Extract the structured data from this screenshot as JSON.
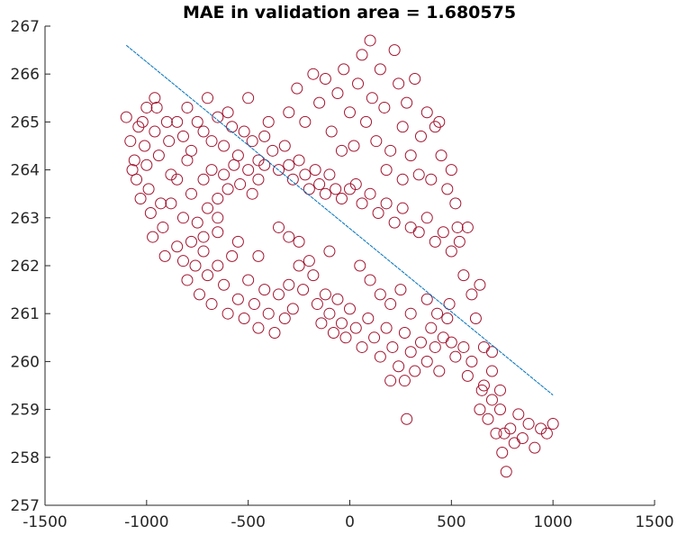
{
  "chart_data": {
    "type": "scatter",
    "title": "MAE in validation area = 1.680575",
    "x": [
      -1100,
      -1080,
      -1060,
      -1050,
      -1040,
      -1020,
      -1010,
      -1000,
      -990,
      -980,
      -970,
      -960,
      -950,
      -940,
      -930,
      -920,
      -910,
      -900,
      -890,
      -880,
      -1030,
      -1070,
      -960,
      -1000,
      -850,
      -820,
      -800,
      -780,
      -750,
      -720,
      -700,
      -680,
      -650,
      -620,
      -600,
      -580,
      -550,
      -520,
      -500,
      -480,
      -450,
      -420,
      -400,
      -380,
      -350,
      -320,
      -300,
      -280,
      -250,
      -220,
      -200,
      -170,
      -150,
      -120,
      -100,
      -70,
      -40,
      0,
      30,
      60,
      100,
      140,
      180,
      220,
      260,
      300,
      340,
      380,
      420,
      460,
      500,
      540,
      -300,
      -260,
      -220,
      -180,
      -150,
      -120,
      -90,
      -60,
      -30,
      0,
      20,
      40,
      60,
      80,
      100,
      110,
      130,
      150,
      170,
      200,
      220,
      240,
      260,
      280,
      300,
      320,
      350,
      380,
      400,
      420,
      450,
      480,
      500,
      520,
      440,
      340,
      180,
      -40,
      260,
      530,
      -850,
      -820,
      -800,
      -780,
      -760,
      -740,
      -720,
      -700,
      -680,
      -650,
      -620,
      -600,
      -580,
      -550,
      -520,
      -500,
      -470,
      -450,
      -420,
      -400,
      -370,
      -350,
      -320,
      -300,
      -280,
      -250,
      -230,
      -200,
      -180,
      -160,
      -140,
      -120,
      -100,
      -80,
      -60,
      -40,
      -20,
      0,
      30,
      60,
      90,
      120,
      150,
      180,
      210,
      240,
      270,
      300,
      320,
      350,
      380,
      400,
      420,
      440,
      460,
      480,
      500,
      520,
      490,
      430,
      380,
      300,
      250,
      200,
      150,
      100,
      50,
      -100,
      -300,
      -450,
      -550,
      -650,
      270,
      200,
      280,
      -350,
      -250,
      -880,
      -850,
      -820,
      -800,
      -780,
      -750,
      -720,
      -700,
      -680,
      -650,
      -620,
      -600,
      -570,
      -540,
      -500,
      -480,
      -450,
      -420,
      -720,
      -650,
      560,
      580,
      600,
      620,
      640,
      560,
      600,
      650,
      580,
      640,
      660,
      680,
      700,
      720,
      740,
      750,
      770,
      790,
      810,
      830,
      850,
      880,
      910,
      940,
      970,
      1000,
      760,
      700,
      660,
      700,
      740
    ],
    "y": [
      265.1,
      264.6,
      264.2,
      263.8,
      264.9,
      265.0,
      264.5,
      264.1,
      263.6,
      263.1,
      262.6,
      264.8,
      265.3,
      264.3,
      263.3,
      262.8,
      262.2,
      265.0,
      264.6,
      263.9,
      263.4,
      264.0,
      265.5,
      265.3,
      265.0,
      264.7,
      265.3,
      264.4,
      265.0,
      264.8,
      265.5,
      264.6,
      265.1,
      264.5,
      265.2,
      264.9,
      264.3,
      264.8,
      265.5,
      264.6,
      264.2,
      264.7,
      265.0,
      264.4,
      264.0,
      264.5,
      264.1,
      263.8,
      264.2,
      263.9,
      263.6,
      264.0,
      263.7,
      263.5,
      263.9,
      263.6,
      263.4,
      263.6,
      263.7,
      263.3,
      263.5,
      263.1,
      263.3,
      262.9,
      263.2,
      262.8,
      262.7,
      263.0,
      262.5,
      262.7,
      262.3,
      262.5,
      265.2,
      265.7,
      265.0,
      266.0,
      265.4,
      265.9,
      264.8,
      265.6,
      266.1,
      265.2,
      264.5,
      265.8,
      266.4,
      265.0,
      266.7,
      265.5,
      264.6,
      266.1,
      265.3,
      264.4,
      266.5,
      265.8,
      264.9,
      265.4,
      264.3,
      265.9,
      264.7,
      265.2,
      263.8,
      264.9,
      264.3,
      263.6,
      264.0,
      263.3,
      265.0,
      263.9,
      264.0,
      264.4,
      263.8,
      262.8,
      262.4,
      262.1,
      261.7,
      262.5,
      262.0,
      261.4,
      262.3,
      261.8,
      261.2,
      262.0,
      261.6,
      261.0,
      262.2,
      261.3,
      260.9,
      261.7,
      261.2,
      260.7,
      261.5,
      261.0,
      260.6,
      261.4,
      260.9,
      261.6,
      261.1,
      262.0,
      261.5,
      262.1,
      261.8,
      261.2,
      260.8,
      261.4,
      261.0,
      260.6,
      261.3,
      260.8,
      260.5,
      261.1,
      260.7,
      260.3,
      260.9,
      260.5,
      260.1,
      260.7,
      260.3,
      259.9,
      260.6,
      260.2,
      259.8,
      260.4,
      260.0,
      260.7,
      260.3,
      259.8,
      260.5,
      260.9,
      260.4,
      260.1,
      261.2,
      261.0,
      261.3,
      261.0,
      261.5,
      261.2,
      261.4,
      261.7,
      262.0,
      262.3,
      262.6,
      262.2,
      262.5,
      262.7,
      259.6,
      259.6,
      258.8,
      262.8,
      262.5,
      263.3,
      263.8,
      263.0,
      264.2,
      263.5,
      262.9,
      263.8,
      263.2,
      264.0,
      263.4,
      263.9,
      263.6,
      264.1,
      263.7,
      264.0,
      263.5,
      263.8,
      264.1,
      262.6,
      263.0,
      261.8,
      262.8,
      261.4,
      260.9,
      261.6,
      260.3,
      260.0,
      259.4,
      259.7,
      259.0,
      259.5,
      258.8,
      259.2,
      258.5,
      259.0,
      258.1,
      257.7,
      258.6,
      258.3,
      258.9,
      258.4,
      258.7,
      258.2,
      258.6,
      258.5,
      258.7,
      258.5,
      259.8,
      260.3,
      260.2,
      259.4
    ],
    "color": "#a2142f",
    "line": {
      "x": [
        -1100,
        1000
      ],
      "y": [
        266.6,
        259.3
      ],
      "color": "#0072bd"
    },
    "xlim": [
      -1500,
      1500
    ],
    "ylim": [
      257,
      267
    ],
    "xticks": [
      -1500,
      -1000,
      -500,
      0,
      500,
      1000,
      1500
    ],
    "yticks": [
      257,
      258,
      259,
      260,
      261,
      262,
      263,
      264,
      265,
      266,
      267
    ]
  }
}
